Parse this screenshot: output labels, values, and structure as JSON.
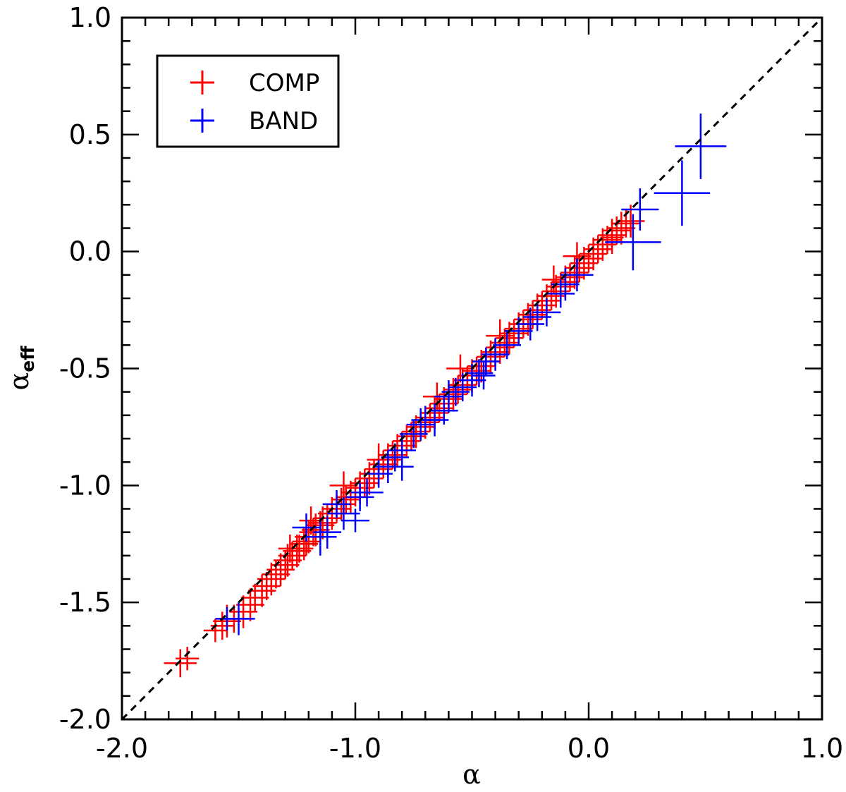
{
  "chart_data": {
    "type": "scatter",
    "xlabel": "α",
    "ylabel_main": "α",
    "ylabel_sub": "eff",
    "xlim": [
      -2.0,
      1.0
    ],
    "ylim": [
      -2.0,
      1.0
    ],
    "x_major_ticks": [
      -2.0,
      -1.0,
      0.0,
      1.0
    ],
    "x_tick_labels": [
      "-2.0",
      "-1.0",
      "0.0",
      "1.0"
    ],
    "x_minor_step": 0.1,
    "y_major_ticks": [
      -2.0,
      -1.5,
      -1.0,
      -0.5,
      0.0,
      0.5,
      1.0
    ],
    "y_tick_labels": [
      "-2.0",
      "-1.5",
      "-1.0",
      "-0.5",
      "0.0",
      "0.5",
      "1.0"
    ],
    "y_minor_step": 0.1,
    "reference_line": {
      "style": "dashed",
      "color": "#000000",
      "from": [
        -2.0,
        -2.0
      ],
      "to": [
        1.0,
        1.0
      ]
    },
    "legend": {
      "placement": "top-left",
      "entries": [
        {
          "label": "COMP",
          "color": "#ff0000"
        },
        {
          "label": "BAND",
          "color": "#0000ff"
        }
      ]
    },
    "series": [
      {
        "name": "COMP",
        "color": "#ff0000",
        "points": [
          [
            -1.75,
            -1.76,
            0.07,
            0.06
          ],
          [
            -1.72,
            -1.74,
            0.05,
            0.05
          ],
          [
            -1.6,
            -1.62,
            0.05,
            0.05
          ],
          [
            -1.57,
            -1.6,
            0.05,
            0.06
          ],
          [
            -1.55,
            -1.58,
            0.06,
            0.07
          ],
          [
            -1.52,
            -1.57,
            0.06,
            0.06
          ],
          [
            -1.48,
            -1.54,
            0.06,
            0.07
          ],
          [
            -1.45,
            -1.51,
            0.06,
            0.07
          ],
          [
            -1.43,
            -1.48,
            0.06,
            0.06
          ],
          [
            -1.4,
            -1.45,
            0.06,
            0.07
          ],
          [
            -1.38,
            -1.43,
            0.06,
            0.06
          ],
          [
            -1.36,
            -1.4,
            0.06,
            0.07
          ],
          [
            -1.34,
            -1.38,
            0.06,
            0.06
          ],
          [
            -1.32,
            -1.36,
            0.06,
            0.07
          ],
          [
            -1.3,
            -1.34,
            0.06,
            0.06
          ],
          [
            -1.29,
            -1.32,
            0.06,
            0.07
          ],
          [
            -1.27,
            -1.3,
            0.06,
            0.06
          ],
          [
            -1.25,
            -1.28,
            0.06,
            0.07
          ],
          [
            -1.24,
            -1.27,
            0.06,
            0.06
          ],
          [
            -1.22,
            -1.25,
            0.06,
            0.07
          ],
          [
            -1.21,
            -1.24,
            0.06,
            0.06
          ],
          [
            -1.2,
            -1.22,
            0.06,
            0.07
          ],
          [
            -1.18,
            -1.2,
            0.06,
            0.06
          ],
          [
            -1.17,
            -1.19,
            0.06,
            0.07
          ],
          [
            -1.15,
            -1.17,
            0.06,
            0.06
          ],
          [
            -1.14,
            -1.16,
            0.06,
            0.07
          ],
          [
            -1.12,
            -1.14,
            0.06,
            0.06
          ],
          [
            -1.1,
            -1.12,
            0.06,
            0.07
          ],
          [
            -1.08,
            -1.1,
            0.06,
            0.06
          ],
          [
            -1.06,
            -1.08,
            0.06,
            0.07
          ],
          [
            -1.04,
            -1.06,
            0.06,
            0.06
          ],
          [
            -1.02,
            -1.05,
            0.06,
            0.07
          ],
          [
            -1.0,
            -1.03,
            0.06,
            0.06
          ],
          [
            -0.98,
            -1.01,
            0.06,
            0.07
          ],
          [
            -0.96,
            -0.99,
            0.06,
            0.06
          ],
          [
            -0.94,
            -0.97,
            0.06,
            0.07
          ],
          [
            -0.92,
            -0.95,
            0.06,
            0.06
          ],
          [
            -0.9,
            -0.93,
            0.06,
            0.07
          ],
          [
            -0.88,
            -0.91,
            0.06,
            0.06
          ],
          [
            -0.86,
            -0.89,
            0.06,
            0.07
          ],
          [
            -0.84,
            -0.87,
            0.06,
            0.06
          ],
          [
            -0.82,
            -0.85,
            0.06,
            0.07
          ],
          [
            -0.8,
            -0.83,
            0.06,
            0.06
          ],
          [
            -0.78,
            -0.81,
            0.06,
            0.07
          ],
          [
            -0.76,
            -0.79,
            0.06,
            0.06
          ],
          [
            -0.74,
            -0.77,
            0.06,
            0.07
          ],
          [
            -0.72,
            -0.75,
            0.06,
            0.06
          ],
          [
            -0.7,
            -0.73,
            0.06,
            0.07
          ],
          [
            -0.68,
            -0.71,
            0.06,
            0.06
          ],
          [
            -0.66,
            -0.69,
            0.06,
            0.07
          ],
          [
            -0.64,
            -0.67,
            0.06,
            0.06
          ],
          [
            -0.62,
            -0.65,
            0.06,
            0.07
          ],
          [
            -0.6,
            -0.63,
            0.06,
            0.06
          ],
          [
            -0.58,
            -0.61,
            0.06,
            0.07
          ],
          [
            -0.56,
            -0.59,
            0.06,
            0.06
          ],
          [
            -0.54,
            -0.57,
            0.06,
            0.07
          ],
          [
            -0.52,
            -0.55,
            0.06,
            0.06
          ],
          [
            -0.5,
            -0.53,
            0.06,
            0.07
          ],
          [
            -0.48,
            -0.51,
            0.06,
            0.06
          ],
          [
            -0.46,
            -0.49,
            0.06,
            0.07
          ],
          [
            -0.44,
            -0.47,
            0.06,
            0.06
          ],
          [
            -0.42,
            -0.45,
            0.06,
            0.07
          ],
          [
            -0.4,
            -0.43,
            0.06,
            0.06
          ],
          [
            -0.38,
            -0.41,
            0.06,
            0.07
          ],
          [
            -0.36,
            -0.39,
            0.06,
            0.06
          ],
          [
            -0.34,
            -0.37,
            0.06,
            0.07
          ],
          [
            -0.32,
            -0.35,
            0.06,
            0.06
          ],
          [
            -0.3,
            -0.33,
            0.06,
            0.07
          ],
          [
            -0.28,
            -0.31,
            0.06,
            0.06
          ],
          [
            -0.26,
            -0.29,
            0.06,
            0.07
          ],
          [
            -0.24,
            -0.27,
            0.06,
            0.06
          ],
          [
            -0.22,
            -0.25,
            0.06,
            0.07
          ],
          [
            -0.2,
            -0.23,
            0.06,
            0.06
          ],
          [
            -0.18,
            -0.21,
            0.06,
            0.07
          ],
          [
            -0.16,
            -0.19,
            0.06,
            0.06
          ],
          [
            -0.14,
            -0.17,
            0.06,
            0.07
          ],
          [
            -0.12,
            -0.15,
            0.06,
            0.06
          ],
          [
            -0.1,
            -0.13,
            0.06,
            0.07
          ],
          [
            -0.08,
            -0.11,
            0.06,
            0.06
          ],
          [
            -0.06,
            -0.09,
            0.06,
            0.07
          ],
          [
            -0.04,
            -0.07,
            0.06,
            0.06
          ],
          [
            -0.02,
            -0.05,
            0.06,
            0.07
          ],
          [
            0.0,
            -0.03,
            0.06,
            0.06
          ],
          [
            0.02,
            -0.01,
            0.06,
            0.07
          ],
          [
            0.04,
            0.01,
            0.06,
            0.06
          ],
          [
            0.06,
            0.03,
            0.06,
            0.07
          ],
          [
            0.08,
            0.05,
            0.06,
            0.06
          ],
          [
            0.1,
            0.07,
            0.06,
            0.07
          ],
          [
            0.12,
            0.09,
            0.06,
            0.06
          ],
          [
            0.14,
            0.1,
            0.06,
            0.07
          ],
          [
            0.16,
            0.12,
            0.06,
            0.06
          ],
          [
            0.18,
            0.13,
            0.06,
            0.07
          ],
          [
            -1.28,
            -1.27,
            0.05,
            0.06
          ],
          [
            -1.19,
            -1.15,
            0.05,
            0.06
          ],
          [
            -1.05,
            -1.0,
            0.06,
            0.06
          ],
          [
            -0.9,
            -0.89,
            0.05,
            0.07
          ],
          [
            -0.65,
            -0.62,
            0.06,
            0.06
          ],
          [
            -0.55,
            -0.5,
            0.06,
            0.06
          ],
          [
            -0.38,
            -0.36,
            0.06,
            0.07
          ],
          [
            -0.15,
            -0.12,
            0.05,
            0.06
          ],
          [
            -0.05,
            -0.02,
            0.06,
            0.06
          ],
          [
            0.1,
            0.06,
            0.05,
            0.07
          ]
        ]
      },
      {
        "name": "BAND",
        "color": "#0000ff",
        "points": [
          [
            -1.55,
            -1.57,
            0.05,
            0.05
          ],
          [
            -1.5,
            -1.57,
            0.07,
            0.07
          ],
          [
            -1.21,
            -1.18,
            0.06,
            0.06
          ],
          [
            -1.15,
            -1.22,
            0.07,
            0.08
          ],
          [
            -1.12,
            -1.2,
            0.06,
            0.07
          ],
          [
            -1.08,
            -1.08,
            0.06,
            0.06
          ],
          [
            -1.05,
            -1.12,
            0.07,
            0.07
          ],
          [
            -1.0,
            -1.15,
            0.06,
            0.05
          ],
          [
            -0.98,
            -1.05,
            0.06,
            0.06
          ],
          [
            -0.95,
            -1.03,
            0.07,
            0.06
          ],
          [
            -0.9,
            -0.95,
            0.06,
            0.06
          ],
          [
            -0.86,
            -0.92,
            0.06,
            0.07
          ],
          [
            -0.83,
            -0.88,
            0.06,
            0.06
          ],
          [
            -0.8,
            -0.85,
            0.06,
            0.07
          ],
          [
            -0.75,
            -0.78,
            0.06,
            0.06
          ],
          [
            -0.72,
            -0.74,
            0.06,
            0.07
          ],
          [
            -0.7,
            -0.72,
            0.06,
            0.06
          ],
          [
            -0.66,
            -0.72,
            0.06,
            0.07
          ],
          [
            -0.62,
            -0.68,
            0.06,
            0.06
          ],
          [
            -0.6,
            -0.62,
            0.06,
            0.07
          ],
          [
            -0.57,
            -0.6,
            0.06,
            0.06
          ],
          [
            -0.54,
            -0.58,
            0.06,
            0.06
          ],
          [
            -0.5,
            -0.55,
            0.06,
            0.07
          ],
          [
            -0.47,
            -0.52,
            0.06,
            0.06
          ],
          [
            -0.44,
            -0.47,
            0.06,
            0.06
          ],
          [
            -0.4,
            -0.44,
            0.06,
            0.07
          ],
          [
            -0.35,
            -0.4,
            0.06,
            0.06
          ],
          [
            -0.3,
            -0.34,
            0.06,
            0.06
          ],
          [
            -0.25,
            -0.31,
            0.06,
            0.07
          ],
          [
            -0.22,
            -0.28,
            0.06,
            0.06
          ],
          [
            -0.18,
            -0.26,
            0.06,
            0.06
          ],
          [
            -0.12,
            -0.18,
            0.06,
            0.06
          ],
          [
            -0.1,
            -0.14,
            0.06,
            0.07
          ],
          [
            -0.05,
            -0.1,
            0.07,
            0.07
          ],
          [
            0.19,
            0.04,
            0.12,
            0.12
          ],
          [
            0.22,
            0.18,
            0.08,
            0.09
          ],
          [
            0.4,
            0.25,
            0.12,
            0.14
          ],
          [
            0.48,
            0.45,
            0.11,
            0.14
          ],
          [
            -0.45,
            -0.53,
            0.05,
            0.06
          ],
          [
            -0.8,
            -0.92,
            0.05,
            0.06
          ]
        ]
      }
    ]
  }
}
